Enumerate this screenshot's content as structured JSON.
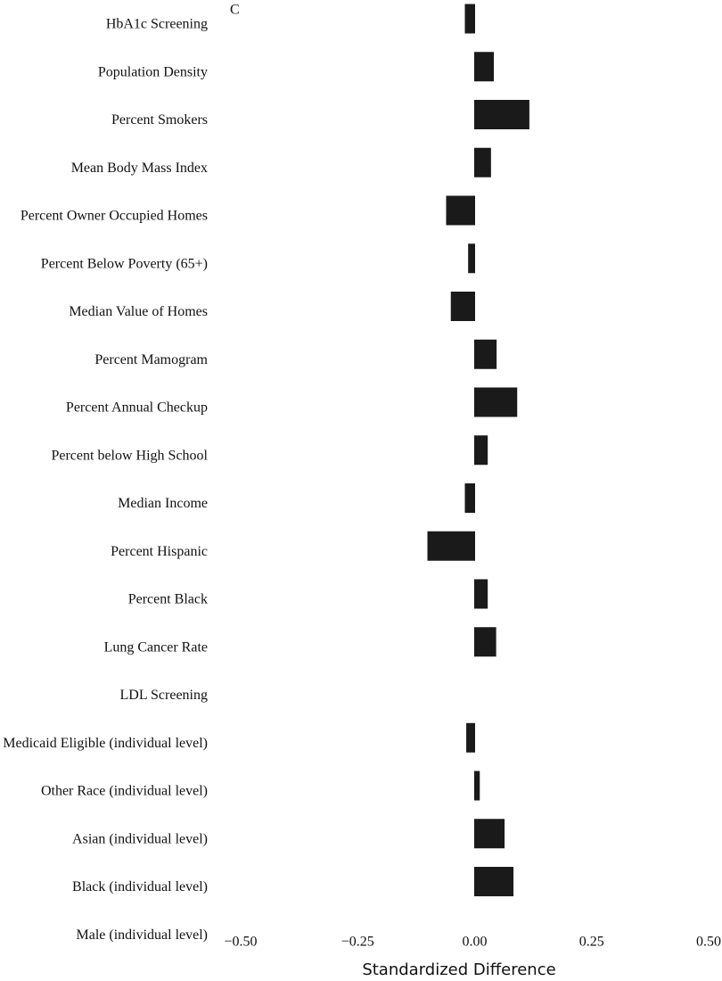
{
  "chart_data": {
    "type": "barh",
    "panel_label": "C",
    "xlabel": "Standardized Difference",
    "categories": [
      "HbA1c Screening",
      "Population Density",
      "Percent Smokers",
      "Mean Body Mass Index",
      "Percent Owner Occupied Homes",
      "Percent Below Poverty (65+)",
      "Median Value of Homes",
      "Percent Mamogram",
      "Percent Annual Checkup",
      "Percent below High School",
      "Median Income",
      "Percent Hispanic",
      "Percent Black",
      "Lung Cancer Rate",
      "LDL Screening",
      "Medicaid Eligible (individual level)",
      "Other Race (individual level)",
      "Asian (individual level)",
      "Black (individual level)",
      "Male (individual level)"
    ],
    "values": [
      -0.02,
      0.04,
      0.116,
      0.034,
      -0.06,
      -0.013,
      -0.05,
      0.046,
      0.09,
      0.027,
      -0.02,
      -0.1,
      0.027,
      0.045,
      0,
      -0.017,
      0.01,
      0.063,
      0.082,
      null
    ],
    "color": "#1a1a1a",
    "xlim": [
      -0.5,
      0.5
    ],
    "xticks": [
      {
        "value": -0.5,
        "label": "−0.50"
      },
      {
        "value": -0.25,
        "label": "−0.25"
      },
      {
        "value": 0,
        "label": "0.00"
      },
      {
        "value": 0.25,
        "label": "0.25"
      },
      {
        "value": 0.5,
        "label": "0.50"
      }
    ]
  }
}
